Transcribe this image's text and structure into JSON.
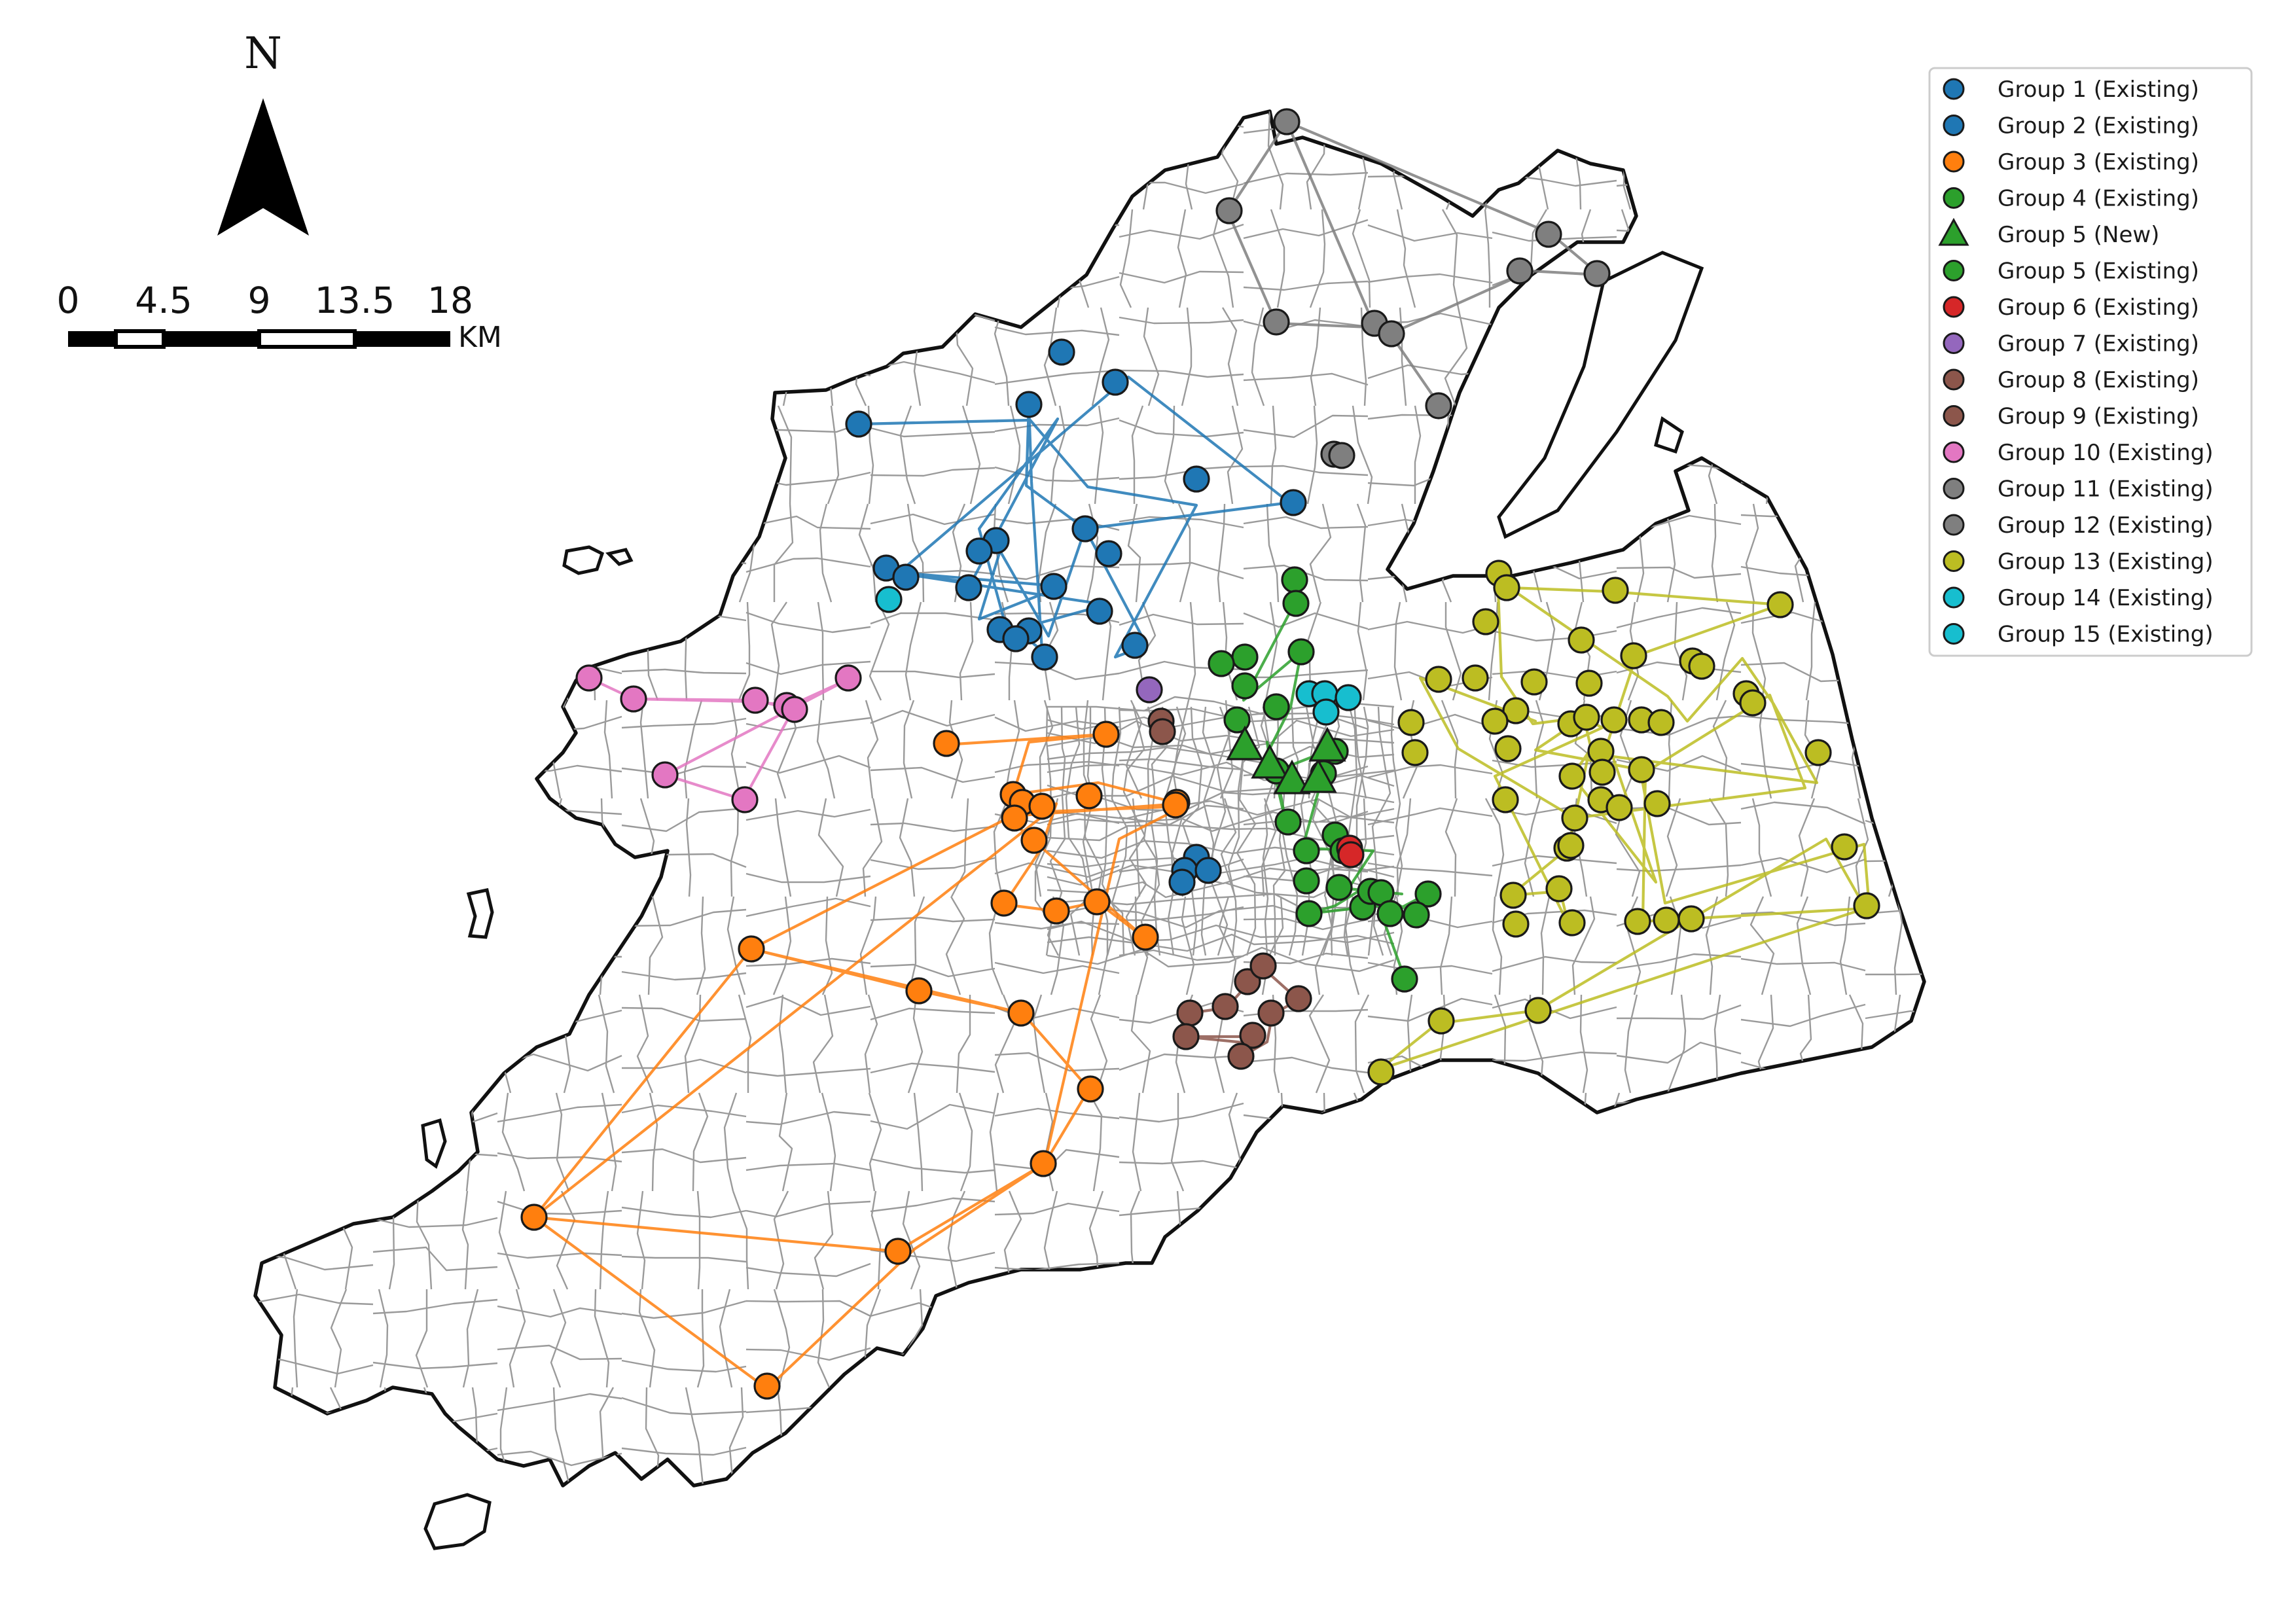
{
  "map": {
    "north_label": "N",
    "scale_labels": [
      "0",
      "4.5",
      "9",
      "13.5",
      "18"
    ],
    "scale_unit": "KM"
  },
  "colors": {
    "group1": "#1f77b4",
    "group3": "#ff7f0e",
    "group4": "#2ca02c",
    "group6": "#d62728",
    "group7": "#9467bd",
    "group8": "#8c564b",
    "group10": "#e377c2",
    "group11": "#7f7f7f",
    "group13": "#bcbd22",
    "group14": "#17becf"
  },
  "legend": [
    {
      "label": "Group 1 (Existing)",
      "color": "#1f77b4",
      "marker": "circle"
    },
    {
      "label": "Group 2 (Existing)",
      "color": "#1f77b4",
      "marker": "circle"
    },
    {
      "label": "Group 3 (Existing)",
      "color": "#ff7f0e",
      "marker": "circle"
    },
    {
      "label": "Group 4 (Existing)",
      "color": "#2ca02c",
      "marker": "circle"
    },
    {
      "label": "Group 5 (New)",
      "color": "#2ca02c",
      "marker": "triangle"
    },
    {
      "label": "Group 5 (Existing)",
      "color": "#2ca02c",
      "marker": "circle"
    },
    {
      "label": "Group 6 (Existing)",
      "color": "#d62728",
      "marker": "circle"
    },
    {
      "label": "Group 7 (Existing)",
      "color": "#9467bd",
      "marker": "circle"
    },
    {
      "label": "Group 8 (Existing)",
      "color": "#8c564b",
      "marker": "circle"
    },
    {
      "label": "Group 9 (Existing)",
      "color": "#8c564b",
      "marker": "circle"
    },
    {
      "label": "Group 10 (Existing)",
      "color": "#e377c2",
      "marker": "circle"
    },
    {
      "label": "Group 11 (Existing)",
      "color": "#7f7f7f",
      "marker": "circle"
    },
    {
      "label": "Group 12 (Existing)",
      "color": "#7f7f7f",
      "marker": "circle"
    },
    {
      "label": "Group 13 (Existing)",
      "color": "#bcbd22",
      "marker": "circle"
    },
    {
      "label": "Group 14 (Existing)",
      "color": "#17becf",
      "marker": "circle"
    },
    {
      "label": "Group 15 (Existing)",
      "color": "#17becf",
      "marker": "circle"
    }
  ]
}
